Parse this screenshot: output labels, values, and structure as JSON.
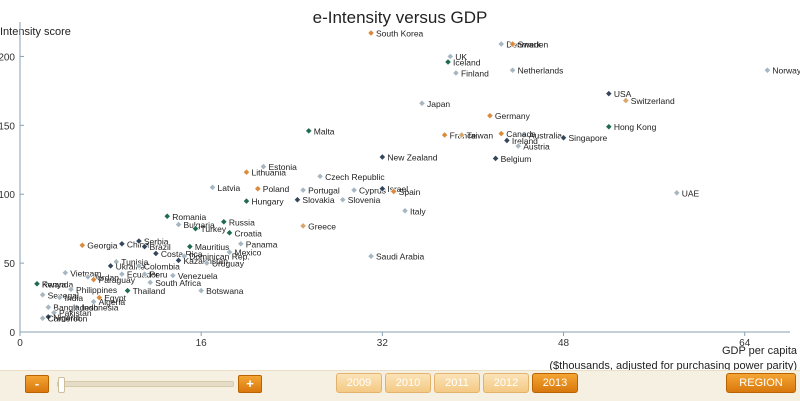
{
  "chart_data": {
    "type": "scatter",
    "title": "e-Intensity versus GDP",
    "ylabel": "Intensity score",
    "xlabel_line1": "GDP per capita",
    "xlabel_line2": "($thousands, adjusted for purchasing power parity)",
    "xlim": [
      0,
      68
    ],
    "ylim": [
      0,
      225
    ],
    "xticks": [
      0,
      16,
      32,
      48,
      64
    ],
    "yticks": [
      0,
      50,
      100,
      150,
      200
    ],
    "ytick_labels": [
      "0",
      "50",
      "100",
      "150",
      "200"
    ],
    "colors": {
      "orange": "#d98a3c",
      "green": "#1f6b4e",
      "gray": "#a7b7c2",
      "navy": "#33465c",
      "tan": "#d8a56b",
      "axis": "#8aa0b0"
    },
    "points": [
      {
        "label": "South Korea",
        "x": 31.0,
        "y": 217,
        "color": "orange"
      },
      {
        "label": "Denmark",
        "x": 42.5,
        "y": 209,
        "color": "gray"
      },
      {
        "label": "Sweden",
        "x": 43.5,
        "y": 209,
        "color": "orange"
      },
      {
        "label": "UK",
        "x": 38.0,
        "y": 200,
        "color": "gray"
      },
      {
        "label": "Iceland",
        "x": 37.8,
        "y": 196,
        "color": "green"
      },
      {
        "label": "Finland",
        "x": 38.5,
        "y": 188,
        "color": "gray"
      },
      {
        "label": "Netherlands",
        "x": 43.5,
        "y": 190,
        "color": "gray"
      },
      {
        "label": "Norway",
        "x": 66.0,
        "y": 190,
        "color": "gray"
      },
      {
        "label": "USA",
        "x": 52.0,
        "y": 173,
        "color": "navy"
      },
      {
        "label": "Switzerland",
        "x": 53.5,
        "y": 168,
        "color": "tan"
      },
      {
        "label": "Japan",
        "x": 35.5,
        "y": 166,
        "color": "gray"
      },
      {
        "label": "Germany",
        "x": 41.5,
        "y": 157,
        "color": "orange"
      },
      {
        "label": "Hong Kong",
        "x": 52.0,
        "y": 149,
        "color": "green"
      },
      {
        "label": "Malta",
        "x": 25.5,
        "y": 146,
        "color": "green"
      },
      {
        "label": "Australia",
        "x": 44.5,
        "y": 143,
        "color": "gray"
      },
      {
        "label": "Canada",
        "x": 42.5,
        "y": 144,
        "color": "orange"
      },
      {
        "label": "France",
        "x": 37.5,
        "y": 143,
        "color": "orange"
      },
      {
        "label": "Taiwan",
        "x": 39.0,
        "y": 143,
        "color": "tan"
      },
      {
        "label": "Ireland",
        "x": 43.0,
        "y": 139,
        "color": "navy"
      },
      {
        "label": "Singapore",
        "x": 48.0,
        "y": 141,
        "color": "navy"
      },
      {
        "label": "Austria",
        "x": 44.0,
        "y": 135,
        "color": "gray"
      },
      {
        "label": "New Zealand",
        "x": 32.0,
        "y": 127,
        "color": "navy"
      },
      {
        "label": "Belgium",
        "x": 42.0,
        "y": 126,
        "color": "navy"
      },
      {
        "label": "Estonia",
        "x": 21.5,
        "y": 120,
        "color": "gray"
      },
      {
        "label": "Lithuania",
        "x": 20.0,
        "y": 116,
        "color": "orange"
      },
      {
        "label": "Czech Republic",
        "x": 26.5,
        "y": 113,
        "color": "gray"
      },
      {
        "label": "Latvia",
        "x": 17.0,
        "y": 105,
        "color": "gray"
      },
      {
        "label": "Poland",
        "x": 21.0,
        "y": 104,
        "color": "orange"
      },
      {
        "label": "Portugal",
        "x": 25.0,
        "y": 103,
        "color": "gray"
      },
      {
        "label": "Cyprus",
        "x": 29.5,
        "y": 103,
        "color": "gray"
      },
      {
        "label": "Israel",
        "x": 32.0,
        "y": 104,
        "color": "navy"
      },
      {
        "label": "Spain",
        "x": 33.0,
        "y": 102,
        "color": "orange"
      },
      {
        "label": "Slovakia",
        "x": 24.5,
        "y": 96,
        "color": "navy"
      },
      {
        "label": "Slovenia",
        "x": 28.5,
        "y": 96,
        "color": "gray"
      },
      {
        "label": "Hungary",
        "x": 20.0,
        "y": 95,
        "color": "green"
      },
      {
        "label": "UAE",
        "x": 58.0,
        "y": 101,
        "color": "gray"
      },
      {
        "label": "Italy",
        "x": 34.0,
        "y": 88,
        "color": "gray"
      },
      {
        "label": "Romania",
        "x": 13.0,
        "y": 84,
        "color": "green"
      },
      {
        "label": "Russia",
        "x": 18.0,
        "y": 80,
        "color": "green"
      },
      {
        "label": "Bulgaria",
        "x": 14.0,
        "y": 78,
        "color": "gray"
      },
      {
        "label": "Turkey",
        "x": 15.5,
        "y": 75,
        "color": "green"
      },
      {
        "label": "Croatia",
        "x": 18.5,
        "y": 72,
        "color": "green"
      },
      {
        "label": "Greece",
        "x": 25.0,
        "y": 77,
        "color": "tan"
      },
      {
        "label": "Panama",
        "x": 19.5,
        "y": 64,
        "color": "gray"
      },
      {
        "label": "Georgia",
        "x": 5.5,
        "y": 63,
        "color": "orange"
      },
      {
        "label": "China",
        "x": 9.0,
        "y": 64,
        "color": "navy"
      },
      {
        "label": "Serbia",
        "x": 10.5,
        "y": 66,
        "color": "navy"
      },
      {
        "label": "Brazil",
        "x": 11.0,
        "y": 62,
        "color": "navy"
      },
      {
        "label": "Mauritius",
        "x": 15.0,
        "y": 62,
        "color": "green"
      },
      {
        "label": "Mexico",
        "x": 18.5,
        "y": 58,
        "color": "gray"
      },
      {
        "label": "Costa Rica",
        "x": 12.0,
        "y": 57,
        "color": "navy"
      },
      {
        "label": "Dominican Rep.",
        "x": 14.5,
        "y": 55,
        "color": "gray"
      },
      {
        "label": "Kazakhstan",
        "x": 14.0,
        "y": 52,
        "color": "navy"
      },
      {
        "label": "Uruguay",
        "x": 16.5,
        "y": 50,
        "color": "gray"
      },
      {
        "label": "Tunisia",
        "x": 8.5,
        "y": 51,
        "color": "gray"
      },
      {
        "label": "Ukraine",
        "x": 8.0,
        "y": 48,
        "color": "navy"
      },
      {
        "label": "Colombia",
        "x": 10.5,
        "y": 48,
        "color": "gray"
      },
      {
        "label": "Vietnam",
        "x": 4.0,
        "y": 43,
        "color": "gray"
      },
      {
        "label": "Ecuador",
        "x": 9.0,
        "y": 42,
        "color": "gray"
      },
      {
        "label": "Jordan",
        "x": 6.0,
        "y": 40,
        "color": "gray"
      },
      {
        "label": "Peru",
        "x": 11.0,
        "y": 42,
        "color": "gray"
      },
      {
        "label": "Venezuela",
        "x": 13.5,
        "y": 41,
        "color": "gray"
      },
      {
        "label": "Paraguay",
        "x": 6.5,
        "y": 38,
        "color": "orange"
      },
      {
        "label": "South Africa",
        "x": 11.5,
        "y": 36,
        "color": "gray"
      },
      {
        "label": "Kenya",
        "x": 1.5,
        "y": 35,
        "color": "gray"
      },
      {
        "label": "Rwanda",
        "x": 1.5,
        "y": 35,
        "color": "green"
      },
      {
        "label": "Philippines",
        "x": 4.5,
        "y": 31,
        "color": "gray"
      },
      {
        "label": "Senegal",
        "x": 2.0,
        "y": 27,
        "color": "gray"
      },
      {
        "label": "India",
        "x": 3.5,
        "y": 25,
        "color": "gray"
      },
      {
        "label": "Thailand",
        "x": 9.5,
        "y": 30,
        "color": "green"
      },
      {
        "label": "Botswana",
        "x": 16.0,
        "y": 30,
        "color": "gray"
      },
      {
        "label": "Egypt",
        "x": 7.0,
        "y": 25,
        "color": "orange"
      },
      {
        "label": "Algeria",
        "x": 6.5,
        "y": 22,
        "color": "gray"
      },
      {
        "label": "Indonesia",
        "x": 5.0,
        "y": 18,
        "color": "gray"
      },
      {
        "label": "Bangladesh",
        "x": 2.5,
        "y": 18,
        "color": "gray"
      },
      {
        "label": "Pakistan",
        "x": 3.0,
        "y": 14,
        "color": "gray"
      },
      {
        "label": "Nigeria",
        "x": 2.5,
        "y": 11,
        "color": "navy"
      },
      {
        "label": "Cameroon",
        "x": 2.0,
        "y": 10,
        "color": "gray"
      },
      {
        "label": "Saudi Arabia",
        "x": 31.0,
        "y": 55,
        "color": "gray"
      }
    ]
  },
  "controls": {
    "zoom_out_label": "-",
    "zoom_in_label": "+",
    "zoom_level": 0.0,
    "years": [
      "2009",
      "2010",
      "2011",
      "2012",
      "2013"
    ],
    "selected_year": "2013",
    "region_label": "REGION"
  }
}
